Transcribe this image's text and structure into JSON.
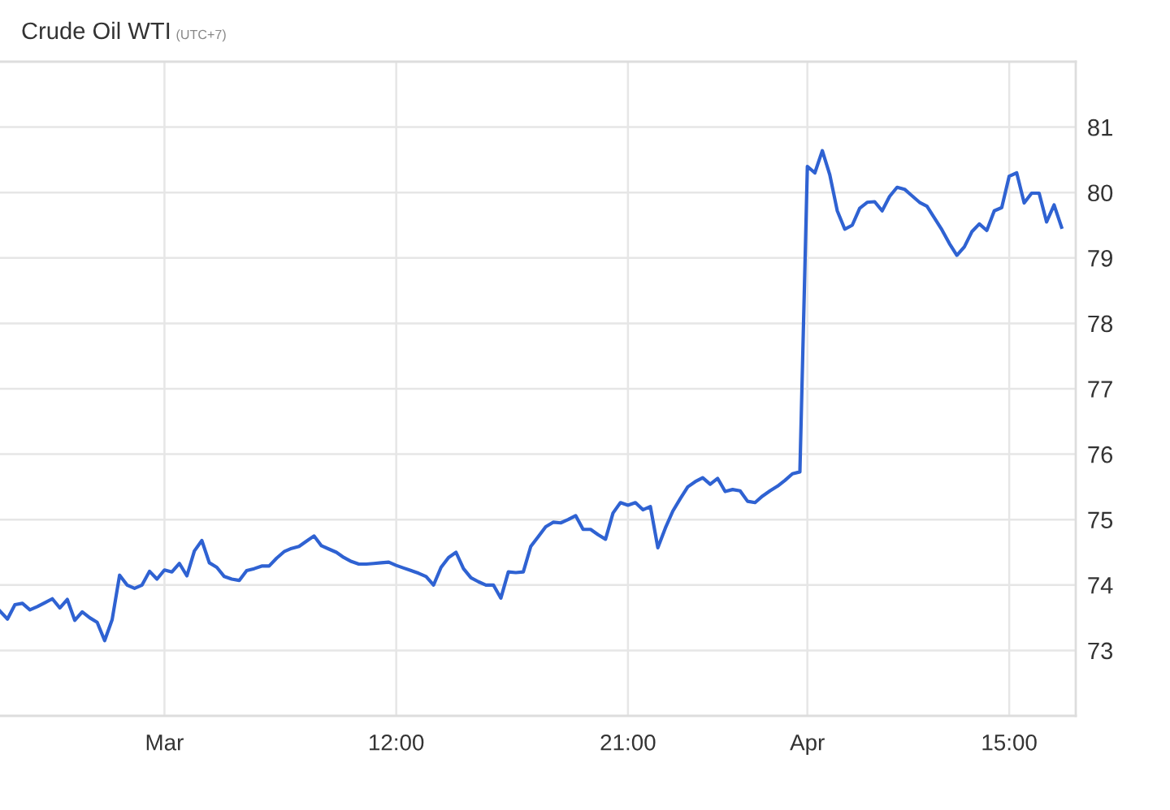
{
  "chart_data": {
    "type": "line",
    "title": "Crude Oil WTI",
    "subtitle": "(UTC+7)",
    "categories": [
      null,
      null,
      null,
      null,
      null,
      null,
      null,
      null,
      null,
      null,
      null,
      null,
      null,
      null,
      null,
      null,
      null,
      null,
      null,
      null,
      null,
      null,
      "Mar",
      null,
      null,
      null,
      null,
      null,
      null,
      null,
      null,
      null,
      null,
      null,
      null,
      null,
      null,
      null,
      null,
      null,
      null,
      null,
      null,
      null,
      null,
      null,
      null,
      null,
      null,
      null,
      null,
      null,
      null,
      "12:00",
      null,
      null,
      null,
      null,
      null,
      null,
      null,
      null,
      null,
      null,
      null,
      null,
      null,
      null,
      null,
      null,
      null,
      null,
      null,
      null,
      null,
      null,
      null,
      null,
      null,
      null,
      null,
      null,
      null,
      null,
      "21:00",
      null,
      null,
      null,
      null,
      null,
      null,
      null,
      null,
      null,
      null,
      null,
      null,
      null,
      null,
      null,
      null,
      null,
      null,
      null,
      null,
      null,
      null,
      null,
      "Apr",
      null,
      null,
      null,
      null,
      null,
      null,
      null,
      null,
      null,
      null,
      null,
      null,
      null,
      null,
      null,
      null,
      null,
      null,
      null,
      null,
      null,
      null,
      null,
      null,
      null,
      null,
      "15:00",
      null,
      null,
      null,
      null,
      null,
      null,
      null
    ],
    "series": [
      {
        "color": "#2f62d2",
        "values": [
          73.6,
          73.48,
          73.7,
          73.72,
          73.62,
          73.67,
          73.73,
          73.79,
          73.65,
          73.78,
          73.46,
          73.59,
          73.5,
          73.43,
          73.15,
          73.47,
          74.15,
          74.0,
          73.95,
          74.0,
          74.21,
          74.09,
          74.23,
          74.2,
          74.33,
          74.14,
          74.52,
          74.68,
          74.34,
          74.27,
          74.13,
          74.09,
          74.07,
          74.22,
          74.25,
          74.29,
          74.29,
          74.41,
          74.51,
          74.56,
          74.59,
          74.67,
          74.75,
          74.6,
          74.55,
          74.5,
          74.42,
          74.36,
          74.32,
          74.32,
          74.33,
          74.34,
          74.35,
          74.3,
          74.26,
          74.22,
          74.18,
          74.13,
          74.0,
          74.27,
          74.42,
          74.5,
          74.25,
          74.11,
          74.05,
          74.0,
          74.0,
          73.8,
          74.2,
          74.19,
          74.2,
          74.59,
          74.74,
          74.89,
          74.96,
          74.95,
          75.0,
          75.06,
          74.85,
          74.85,
          74.77,
          74.7,
          75.1,
          75.26,
          75.22,
          75.26,
          75.15,
          75.2,
          74.57,
          74.87,
          75.13,
          75.32,
          75.5,
          75.58,
          75.64,
          75.54,
          75.63,
          75.43,
          75.46,
          75.44,
          75.28,
          75.26,
          75.36,
          75.44,
          75.51,
          75.6,
          75.7,
          75.73,
          80.4,
          80.3,
          80.64,
          80.27,
          79.72,
          79.44,
          79.5,
          79.76,
          79.85,
          79.86,
          79.72,
          79.94,
          80.08,
          80.05,
          79.95,
          79.85,
          79.79,
          79.61,
          79.43,
          79.22,
          79.04,
          79.17,
          79.4,
          79.52,
          79.42,
          79.72,
          79.77,
          80.25,
          80.3,
          79.84,
          79.99,
          79.99,
          79.55,
          79.81,
          79.47
        ]
      }
    ],
    "ylim": [
      72,
      82
    ],
    "yticks": [
      73,
      74,
      75,
      76,
      77,
      78,
      79,
      80,
      81
    ],
    "grid": true,
    "line_style": "solid"
  }
}
